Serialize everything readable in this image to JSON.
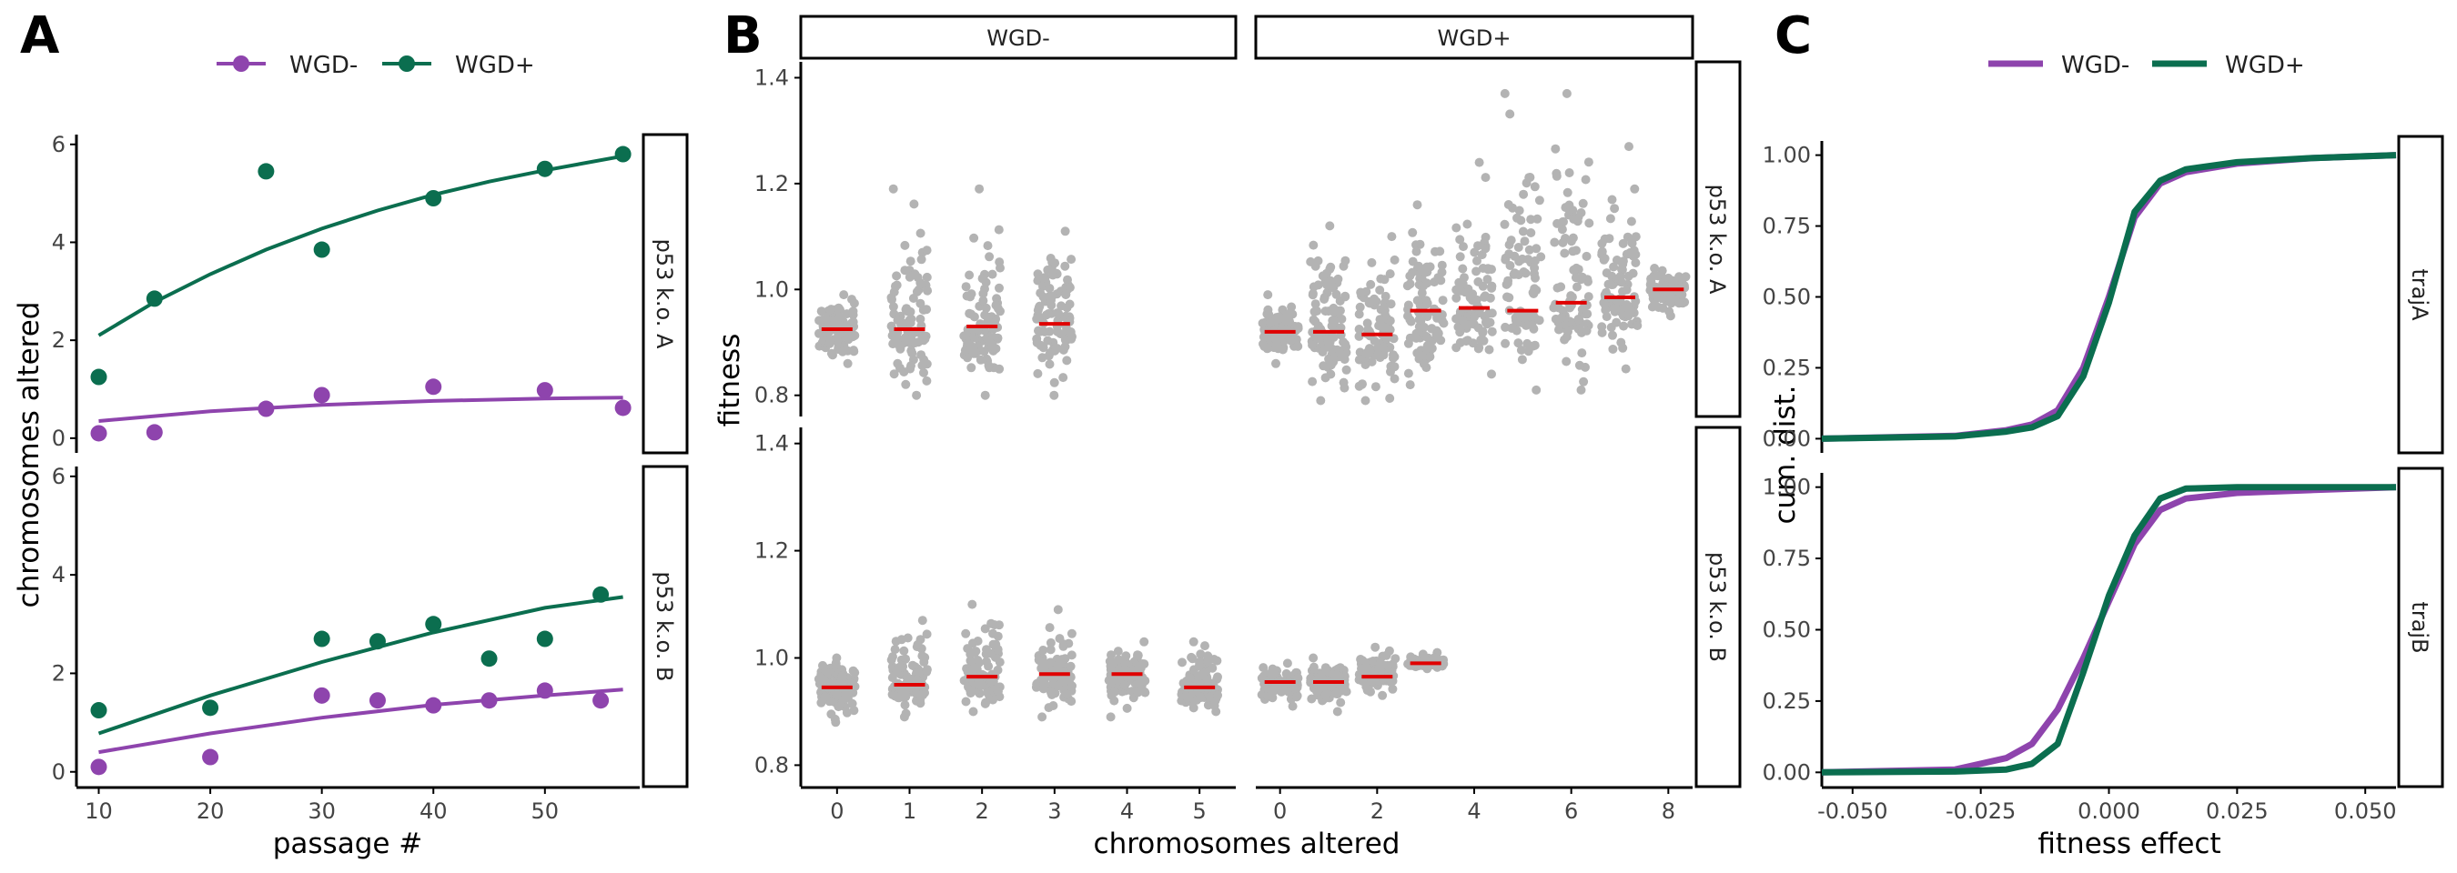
{
  "colors": {
    "wgd_minus": "#8E44AD",
    "wgd_plus": "#0B6E4F",
    "grey": "#B3B3B3",
    "median": "#E00000",
    "axis": "#000000",
    "text": "#222222",
    "tick": "#444444"
  },
  "chart_data": [
    {
      "panel": "A",
      "type": "scatter",
      "legend": {
        "placement": "top",
        "entries": [
          "WGD-",
          "WGD+"
        ]
      },
      "xlabel": "passage #",
      "ylabel": "chromosomes altered",
      "xlim": [
        8,
        58.5
      ],
      "ylim": [
        -0.3,
        6.2
      ],
      "xticks": [
        "10",
        "20",
        "30",
        "40",
        "50"
      ],
      "yticks": [
        "0",
        "2",
        "4",
        "6"
      ],
      "facets": [
        {
          "label": "p53 k.o. A",
          "series": [
            {
              "name": "WGD-",
              "points": [
                [
                  10,
                  0.1
                ],
                [
                  15,
                  0.12
                ],
                [
                  25,
                  0.6
                ],
                [
                  30,
                  0.88
                ],
                [
                  40,
                  1.05
                ],
                [
                  50,
                  0.98
                ],
                [
                  57,
                  0.62
                ]
              ],
              "fit": [
                [
                  10,
                  0.35
                ],
                [
                  20,
                  0.55
                ],
                [
                  30,
                  0.68
                ],
                [
                  40,
                  0.76
                ],
                [
                  50,
                  0.81
                ],
                [
                  57,
                  0.83
                ]
              ]
            },
            {
              "name": "WGD+",
              "points": [
                [
                  10,
                  1.25
                ],
                [
                  15,
                  2.85
                ],
                [
                  25,
                  5.45
                ],
                [
                  30,
                  3.85
                ],
                [
                  40,
                  4.9
                ],
                [
                  50,
                  5.5
                ],
                [
                  57,
                  5.8
                ]
              ],
              "fit": [
                [
                  10,
                  2.1
                ],
                [
                  15,
                  2.78
                ],
                [
                  20,
                  3.35
                ],
                [
                  25,
                  3.85
                ],
                [
                  30,
                  4.28
                ],
                [
                  35,
                  4.65
                ],
                [
                  40,
                  4.97
                ],
                [
                  45,
                  5.24
                ],
                [
                  50,
                  5.47
                ],
                [
                  57,
                  5.76
                ]
              ]
            }
          ]
        },
        {
          "label": "p53 k.o. B",
          "series": [
            {
              "name": "WGD-",
              "points": [
                [
                  10,
                  0.1
                ],
                [
                  20,
                  0.3
                ],
                [
                  30,
                  1.55
                ],
                [
                  35,
                  1.45
                ],
                [
                  40,
                  1.35
                ],
                [
                  45,
                  1.45
                ],
                [
                  50,
                  1.65
                ],
                [
                  55,
                  1.45
                ]
              ],
              "fit": [
                [
                  10,
                  0.4
                ],
                [
                  20,
                  0.78
                ],
                [
                  30,
                  1.1
                ],
                [
                  40,
                  1.36
                ],
                [
                  50,
                  1.55
                ],
                [
                  57,
                  1.67
                ]
              ]
            },
            {
              "name": "WGD+",
              "points": [
                [
                  10,
                  1.25
                ],
                [
                  20,
                  1.3
                ],
                [
                  30,
                  2.7
                ],
                [
                  35,
                  2.65
                ],
                [
                  40,
                  3.0
                ],
                [
                  45,
                  2.3
                ],
                [
                  50,
                  2.7
                ],
                [
                  55,
                  3.6
                ]
              ],
              "fit": [
                [
                  10,
                  0.78
                ],
                [
                  20,
                  1.55
                ],
                [
                  30,
                  2.23
                ],
                [
                  40,
                  2.83
                ],
                [
                  50,
                  3.33
                ],
                [
                  57,
                  3.55
                ]
              ]
            }
          ]
        }
      ]
    },
    {
      "panel": "B",
      "type": "scatter",
      "xlabel": "chromosomes altered",
      "ylabel": "fitness",
      "ylim": [
        0.76,
        1.43
      ],
      "yticks": [
        "0.8",
        "1.0",
        "1.2",
        "1.4"
      ],
      "columns": [
        {
          "label": "WGD-",
          "xlim": [
            -0.5,
            5.5
          ],
          "xticks": [
            "0",
            "1",
            "2",
            "3",
            "4",
            "5"
          ]
        },
        {
          "label": "WGD+",
          "xlim": [
            -0.5,
            8.5
          ],
          "xticks": [
            "0",
            "2",
            "4",
            "6",
            "8"
          ]
        }
      ],
      "rows": [
        "p53 k.o. A",
        "p53 k.o. B"
      ],
      "groups": [
        {
          "row": "p53 k.o. A",
          "col": "WGD-",
          "x": 0,
          "median": 0.925,
          "low": 0.86,
          "high": 0.99
        },
        {
          "row": "p53 k.o. A",
          "col": "WGD-",
          "x": 1,
          "median": 0.925,
          "low": 0.8,
          "high": 1.19
        },
        {
          "row": "p53 k.o. A",
          "col": "WGD-",
          "x": 2,
          "median": 0.93,
          "low": 0.8,
          "high": 1.19
        },
        {
          "row": "p53 k.o. A",
          "col": "WGD-",
          "x": 3,
          "median": 0.935,
          "low": 0.8,
          "high": 1.11
        },
        {
          "row": "p53 k.o. A",
          "col": "WGD+",
          "x": 0,
          "median": 0.92,
          "low": 0.86,
          "high": 0.99
        },
        {
          "row": "p53 k.o. A",
          "col": "WGD+",
          "x": 1,
          "median": 0.92,
          "low": 0.79,
          "high": 1.12
        },
        {
          "row": "p53 k.o. A",
          "col": "WGD+",
          "x": 2,
          "median": 0.915,
          "low": 0.79,
          "high": 1.1
        },
        {
          "row": "p53 k.o. A",
          "col": "WGD+",
          "x": 3,
          "median": 0.96,
          "low": 0.82,
          "high": 1.16
        },
        {
          "row": "p53 k.o. A",
          "col": "WGD+",
          "x": 4,
          "median": 0.965,
          "low": 0.84,
          "high": 1.24
        },
        {
          "row": "p53 k.o. A",
          "col": "WGD+",
          "x": 5,
          "median": 0.96,
          "low": 0.81,
          "high": 1.37
        },
        {
          "row": "p53 k.o. A",
          "col": "WGD+",
          "x": 6,
          "median": 0.975,
          "low": 0.81,
          "high": 1.37
        },
        {
          "row": "p53 k.o. A",
          "col": "WGD+",
          "x": 7,
          "median": 0.985,
          "low": 0.85,
          "high": 1.27
        },
        {
          "row": "p53 k.o. A",
          "col": "WGD+",
          "x": 8,
          "median": 1.0,
          "low": 0.95,
          "high": 1.04
        },
        {
          "row": "p53 k.o. B",
          "col": "WGD-",
          "x": 0,
          "median": 0.945,
          "low": 0.88,
          "high": 1.0
        },
        {
          "row": "p53 k.o. B",
          "col": "WGD-",
          "x": 1,
          "median": 0.95,
          "low": 0.89,
          "high": 1.07
        },
        {
          "row": "p53 k.o. B",
          "col": "WGD-",
          "x": 2,
          "median": 0.965,
          "low": 0.9,
          "high": 1.1
        },
        {
          "row": "p53 k.o. B",
          "col": "WGD-",
          "x": 3,
          "median": 0.97,
          "low": 0.89,
          "high": 1.09
        },
        {
          "row": "p53 k.o. B",
          "col": "WGD-",
          "x": 4,
          "median": 0.97,
          "low": 0.89,
          "high": 1.03
        },
        {
          "row": "p53 k.o. B",
          "col": "WGD-",
          "x": 5,
          "median": 0.945,
          "low": 0.9,
          "high": 1.03
        },
        {
          "row": "p53 k.o. B",
          "col": "WGD+",
          "x": 0,
          "median": 0.955,
          "low": 0.91,
          "high": 0.99
        },
        {
          "row": "p53 k.o. B",
          "col": "WGD+",
          "x": 1,
          "median": 0.955,
          "low": 0.9,
          "high": 1.0
        },
        {
          "row": "p53 k.o. B",
          "col": "WGD+",
          "x": 2,
          "median": 0.965,
          "low": 0.93,
          "high": 1.02
        },
        {
          "row": "p53 k.o. B",
          "col": "WGD+",
          "x": 3,
          "median": 0.99,
          "low": 0.98,
          "high": 1.01
        }
      ]
    },
    {
      "panel": "C",
      "type": "line",
      "legend": {
        "placement": "top",
        "entries": [
          "WGD-",
          "WGD+"
        ]
      },
      "xlabel": "fitness effect",
      "ylabel": "cum. dist.",
      "xlim": [
        -0.056,
        0.056
      ],
      "ylim": [
        -0.05,
        1.05
      ],
      "xticks": [
        "-0.050",
        "-0.025",
        "0.000",
        "0.025",
        "0.050"
      ],
      "yticks": [
        "0.00",
        "0.25",
        "0.50",
        "0.75",
        "1.00"
      ],
      "facets": [
        {
          "label": "trajA",
          "series": [
            {
              "name": "WGD-",
              "points": [
                [
                  -0.056,
                  0.0
                ],
                [
                  -0.03,
                  0.01
                ],
                [
                  -0.02,
                  0.03
                ],
                [
                  -0.015,
                  0.05
                ],
                [
                  -0.01,
                  0.1
                ],
                [
                  -0.005,
                  0.25
                ],
                [
                  0.0,
                  0.5
                ],
                [
                  0.005,
                  0.78
                ],
                [
                  0.01,
                  0.9
                ],
                [
                  0.015,
                  0.94
                ],
                [
                  0.025,
                  0.97
                ],
                [
                  0.04,
                  0.99
                ],
                [
                  0.056,
                  1.0
                ]
              ]
            },
            {
              "name": "WGD+",
              "points": [
                [
                  -0.056,
                  0.0
                ],
                [
                  -0.03,
                  0.008
                ],
                [
                  -0.02,
                  0.025
                ],
                [
                  -0.015,
                  0.04
                ],
                [
                  -0.01,
                  0.08
                ],
                [
                  -0.005,
                  0.22
                ],
                [
                  0.0,
                  0.48
                ],
                [
                  0.005,
                  0.8
                ],
                [
                  0.01,
                  0.91
                ],
                [
                  0.015,
                  0.95
                ],
                [
                  0.025,
                  0.975
                ],
                [
                  0.04,
                  0.99
                ],
                [
                  0.056,
                  1.0
                ]
              ]
            }
          ]
        },
        {
          "label": "trajB",
          "series": [
            {
              "name": "WGD-",
              "points": [
                [
                  -0.056,
                  0.0
                ],
                [
                  -0.03,
                  0.01
                ],
                [
                  -0.02,
                  0.05
                ],
                [
                  -0.015,
                  0.1
                ],
                [
                  -0.01,
                  0.22
                ],
                [
                  -0.005,
                  0.4
                ],
                [
                  0.0,
                  0.6
                ],
                [
                  0.005,
                  0.8
                ],
                [
                  0.01,
                  0.92
                ],
                [
                  0.015,
                  0.96
                ],
                [
                  0.025,
                  0.98
                ],
                [
                  0.04,
                  0.99
                ],
                [
                  0.056,
                  1.0
                ]
              ]
            },
            {
              "name": "WGD+",
              "points": [
                [
                  -0.056,
                  0.0
                ],
                [
                  -0.03,
                  0.003
                ],
                [
                  -0.02,
                  0.01
                ],
                [
                  -0.015,
                  0.03
                ],
                [
                  -0.01,
                  0.1
                ],
                [
                  -0.005,
                  0.35
                ],
                [
                  0.0,
                  0.62
                ],
                [
                  0.005,
                  0.83
                ],
                [
                  0.01,
                  0.96
                ],
                [
                  0.015,
                  0.995
                ],
                [
                  0.025,
                  1.0
                ],
                [
                  0.056,
                  1.0
                ]
              ]
            }
          ]
        }
      ]
    }
  ]
}
